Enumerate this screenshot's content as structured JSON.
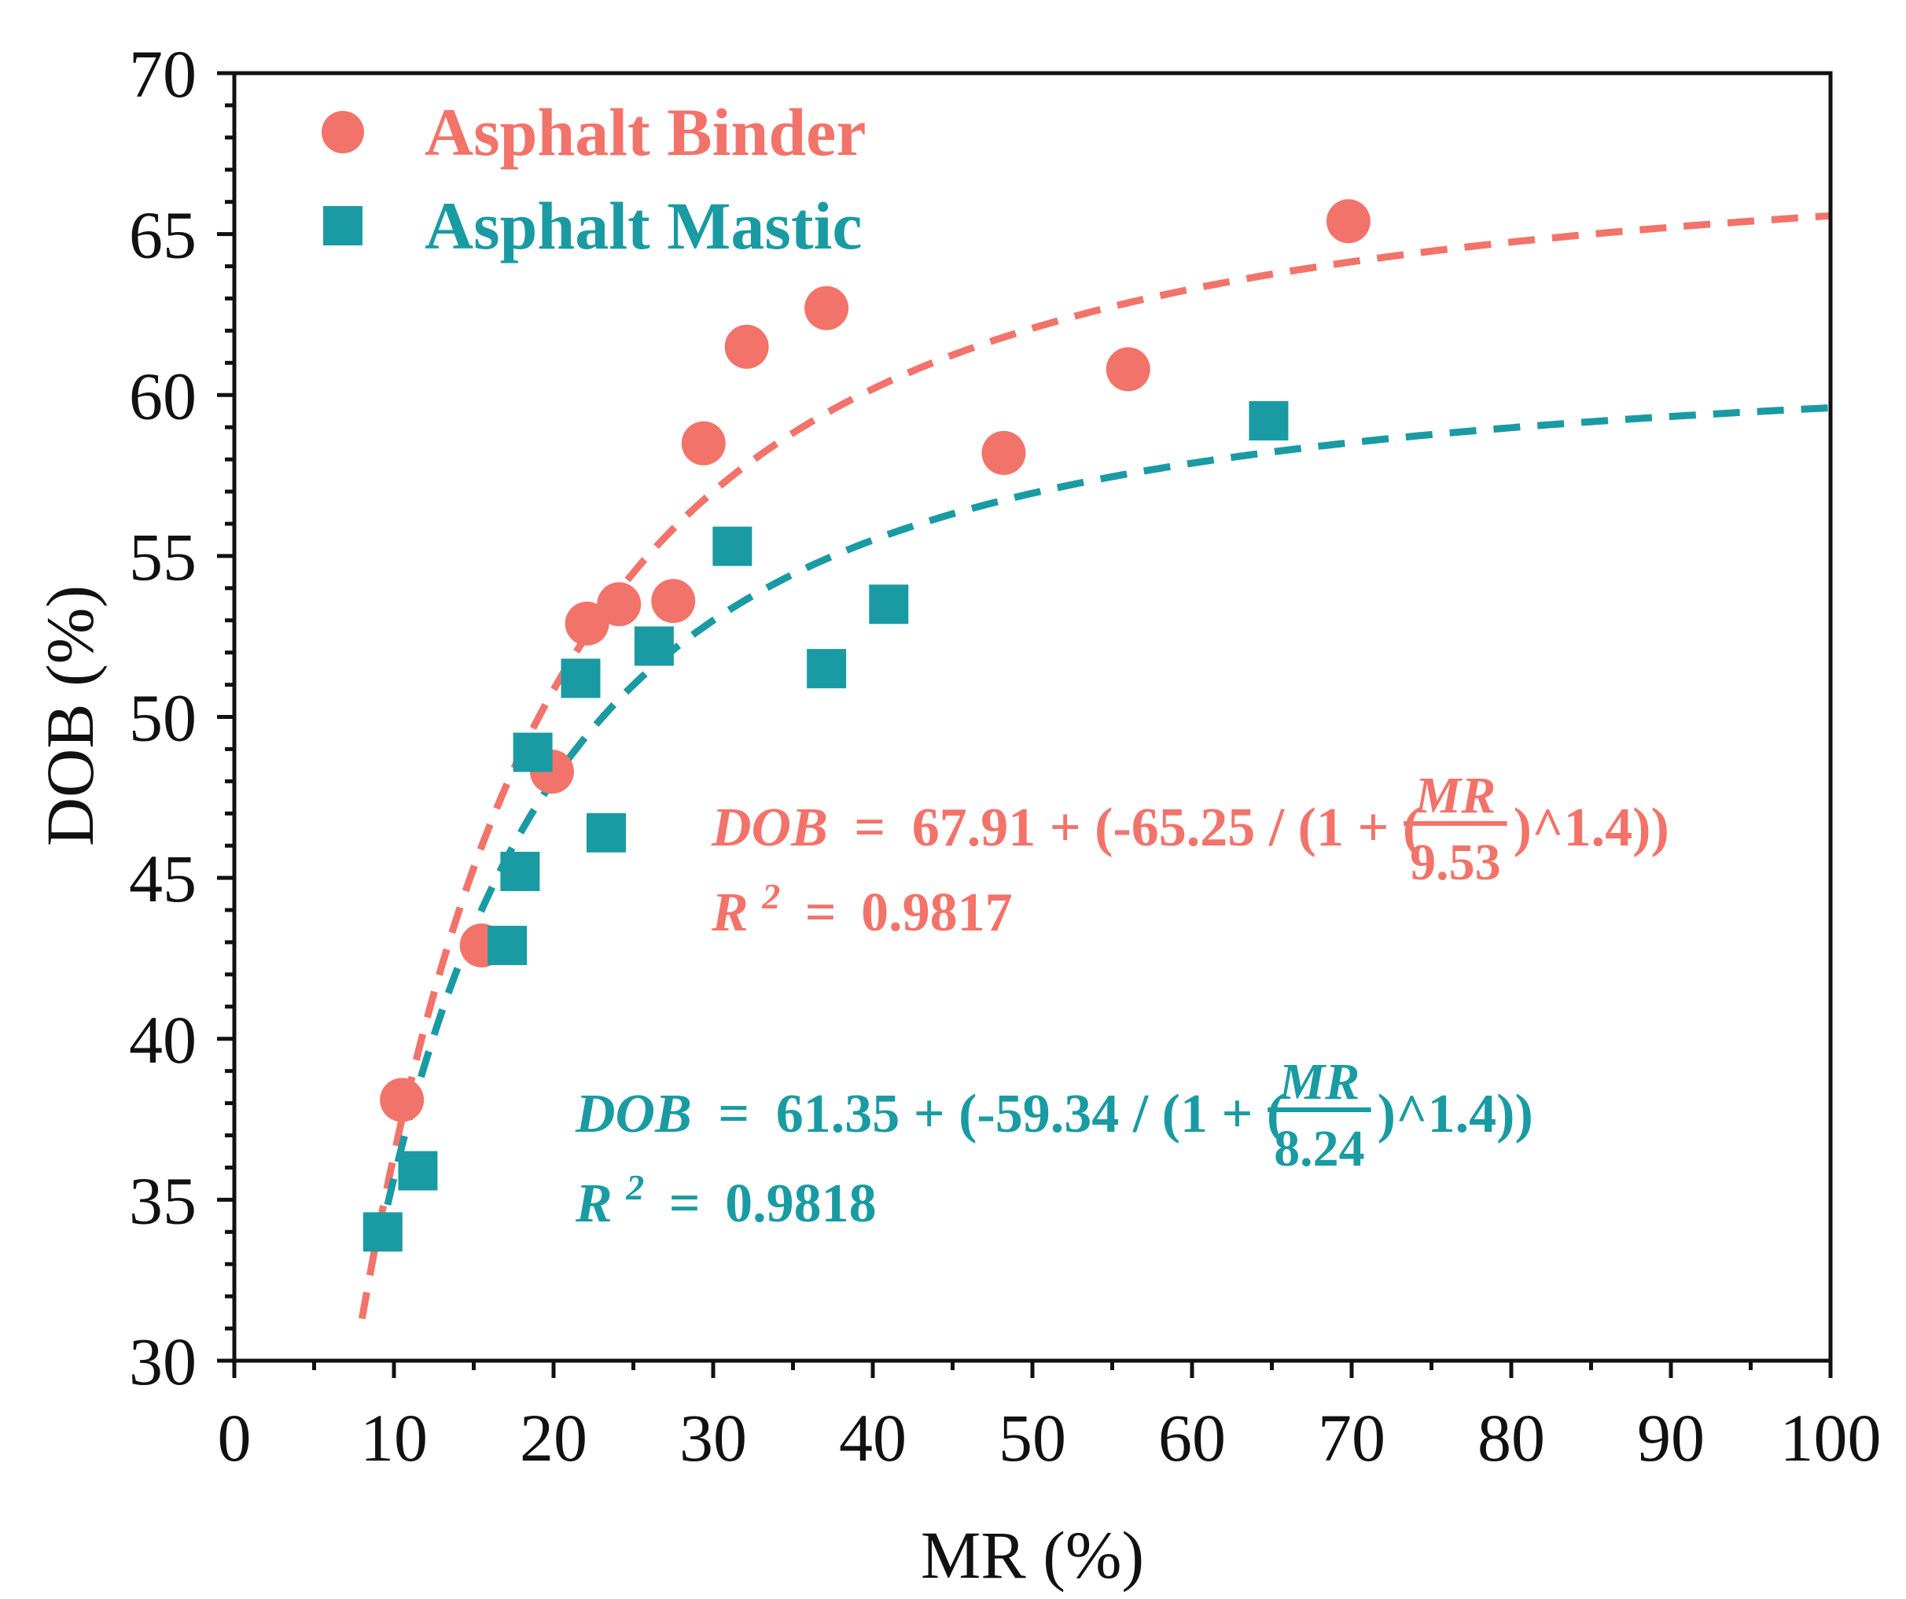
{
  "colors": {
    "binder": "#F2736A",
    "mastic": "#1A9BA3",
    "axis": "#111111",
    "background": "#FFFFFF"
  },
  "chart_data": {
    "type": "scatter",
    "title": "",
    "xlabel": "MR (%)",
    "ylabel": "DOB (%)",
    "xlim": [
      0,
      100
    ],
    "ylim": [
      30,
      70
    ],
    "x_ticks": [
      "0",
      "10",
      "20",
      "30",
      "40",
      "50",
      "60",
      "70",
      "80",
      "90",
      "100"
    ],
    "y_ticks": [
      "30",
      "35",
      "40",
      "45",
      "50",
      "55",
      "60",
      "65",
      "70"
    ],
    "grid": false,
    "legend_position": "top-left",
    "series": [
      {
        "name": "Asphalt Binder",
        "marker": "circle",
        "color": "#F2736A",
        "points": [
          {
            "x": 10.5,
            "y": 38.1
          },
          {
            "x": 15.5,
            "y": 42.9
          },
          {
            "x": 19.9,
            "y": 48.3
          },
          {
            "x": 22.1,
            "y": 52.9
          },
          {
            "x": 24.1,
            "y": 53.5
          },
          {
            "x": 27.5,
            "y": 53.6
          },
          {
            "x": 29.4,
            "y": 58.5
          },
          {
            "x": 32.1,
            "y": 61.5
          },
          {
            "x": 37.1,
            "y": 62.7
          },
          {
            "x": 48.2,
            "y": 58.2
          },
          {
            "x": 56.0,
            "y": 60.8
          },
          {
            "x": 69.8,
            "y": 65.4
          }
        ],
        "fit": {
          "model": "logistic",
          "A2": 67.91,
          "A1": -65.25,
          "x0": 9.53,
          "p": 1.4,
          "x_range": [
            8,
            100
          ],
          "equation": {
            "lhs": "DOB",
            "eq": "=",
            "pre": "67.91 + (-65.25 / (1 + (",
            "num": "MR",
            "den": "9.53",
            "post": ")^1.4))",
            "r2_label": "R",
            "r2_sup": "2",
            "r2_eq": "=",
            "r2_value": "0.9817"
          }
        }
      },
      {
        "name": "Asphalt Mastic",
        "marker": "square",
        "color": "#1A9BA3",
        "points": [
          {
            "x": 9.3,
            "y": 34.0
          },
          {
            "x": 11.5,
            "y": 35.9
          },
          {
            "x": 17.1,
            "y": 42.9
          },
          {
            "x": 17.9,
            "y": 45.2
          },
          {
            "x": 18.7,
            "y": 48.9
          },
          {
            "x": 21.7,
            "y": 51.2
          },
          {
            "x": 23.3,
            "y": 46.4
          },
          {
            "x": 26.3,
            "y": 52.2
          },
          {
            "x": 31.2,
            "y": 55.3
          },
          {
            "x": 37.1,
            "y": 51.5
          },
          {
            "x": 41.0,
            "y": 53.5
          },
          {
            "x": 64.8,
            "y": 59.2
          }
        ],
        "fit": {
          "model": "logistic",
          "A2": 61.35,
          "A1": -59.34,
          "x0": 8.24,
          "p": 1.4,
          "x_range": [
            9,
            100
          ],
          "equation": {
            "lhs": "DOB",
            "eq": "=",
            "pre": "61.35 + (-59.34 / (1 + (",
            "num": "MR",
            "den": "8.24",
            "post": ")^1.4))",
            "r2_label": "R",
            "r2_sup": "2",
            "r2_eq": "=",
            "r2_value": "0.9818"
          }
        }
      }
    ]
  }
}
